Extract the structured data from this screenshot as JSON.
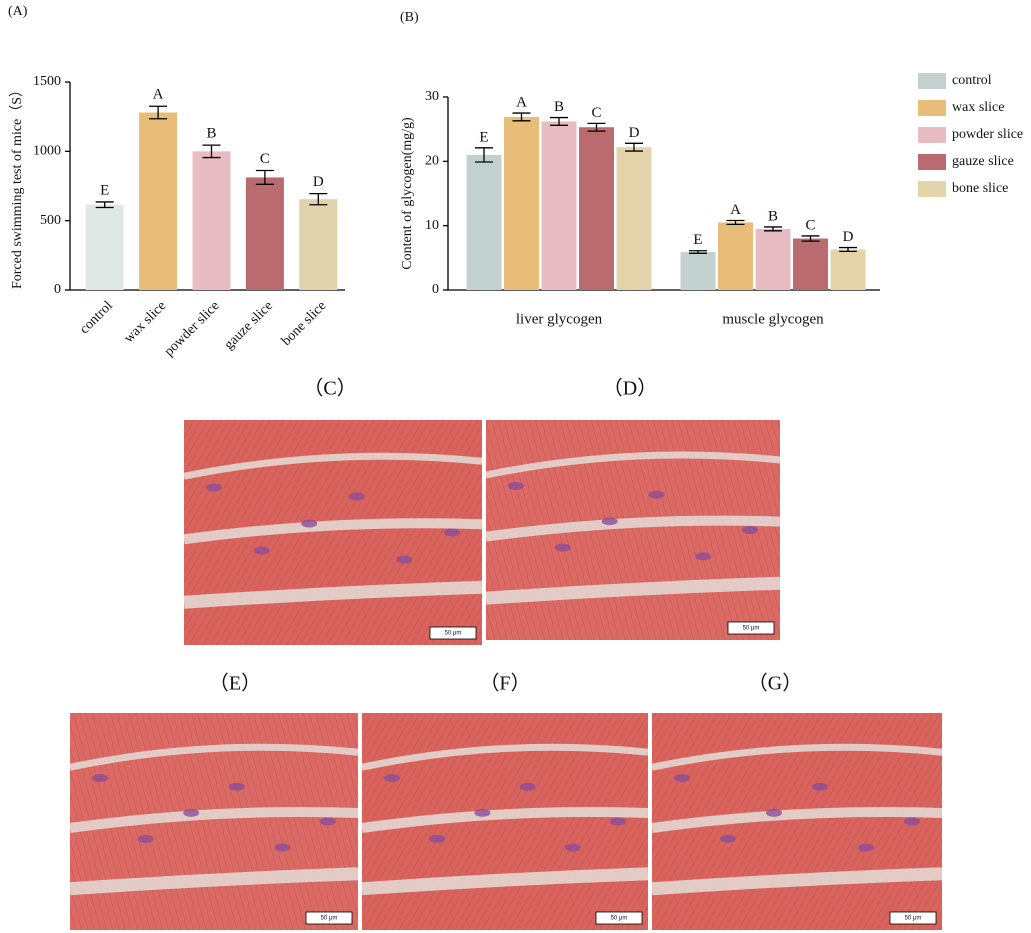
{
  "chart_data": [
    {
      "type": "bar",
      "title": "(A)",
      "ylabel": "Forced swimming test of mice（S）",
      "categories": [
        "control",
        "wax slice",
        "powder slice",
        "gauze slice",
        "bone slice"
      ],
      "values": [
        615,
        1280,
        1000,
        812,
        655
      ],
      "errors": [
        20,
        45,
        45,
        50,
        40
      ],
      "annotations": [
        "E",
        "A",
        "B",
        "C",
        "D"
      ],
      "colors": [
        "#e0e8e6",
        "#e8bd7a",
        "#e8bcc3",
        "#b96b70",
        "#e0d2ad"
      ],
      "ylim": [
        0,
        1500
      ],
      "yticks": [
        0,
        500,
        1000,
        1500
      ]
    },
    {
      "type": "grouped_bar",
      "title": "(B)",
      "ylabel": "Content of glycogen(mg/g)",
      "categories": [
        "liver glycogen",
        "muscle glycogen"
      ],
      "series": [
        {
          "name": "control",
          "color": "#c3d1d0",
          "values": [
            21,
            5.9
          ],
          "errors": [
            1.1,
            0.2
          ],
          "annotations": [
            "E",
            "E"
          ]
        },
        {
          "name": "wax slice",
          "color": "#e8bd7a",
          "values": [
            26.9,
            10.5
          ],
          "errors": [
            0.6,
            0.3
          ],
          "annotations": [
            "A",
            "A"
          ]
        },
        {
          "name": "powder slice",
          "color": "#e8bcc3",
          "values": [
            26.2,
            9.5
          ],
          "errors": [
            0.6,
            0.3
          ],
          "annotations": [
            "B",
            "B"
          ]
        },
        {
          "name": "gauze slice",
          "color": "#b96b70",
          "values": [
            25.3,
            8.0
          ],
          "errors": [
            0.6,
            0.4
          ],
          "annotations": [
            "C",
            "C"
          ]
        },
        {
          "name": "bone slice",
          "color": "#e3d4ab",
          "values": [
            22.2,
            6.3
          ],
          "errors": [
            0.6,
            0.3
          ],
          "annotations": [
            "D",
            "D"
          ]
        }
      ],
      "ylim": [
        0,
        30
      ],
      "yticks": [
        0,
        10,
        20,
        30
      ],
      "legend": "right"
    }
  ],
  "panels": [
    {
      "label": "（C）",
      "scale_bar": "50 μm"
    },
    {
      "label": "（D）",
      "scale_bar": "50 μm"
    },
    {
      "label": "（E）",
      "scale_bar": "50 μm"
    },
    {
      "label": "（F）",
      "scale_bar": "50 μm"
    },
    {
      "label": "（G）",
      "scale_bar": "50 μm"
    }
  ]
}
